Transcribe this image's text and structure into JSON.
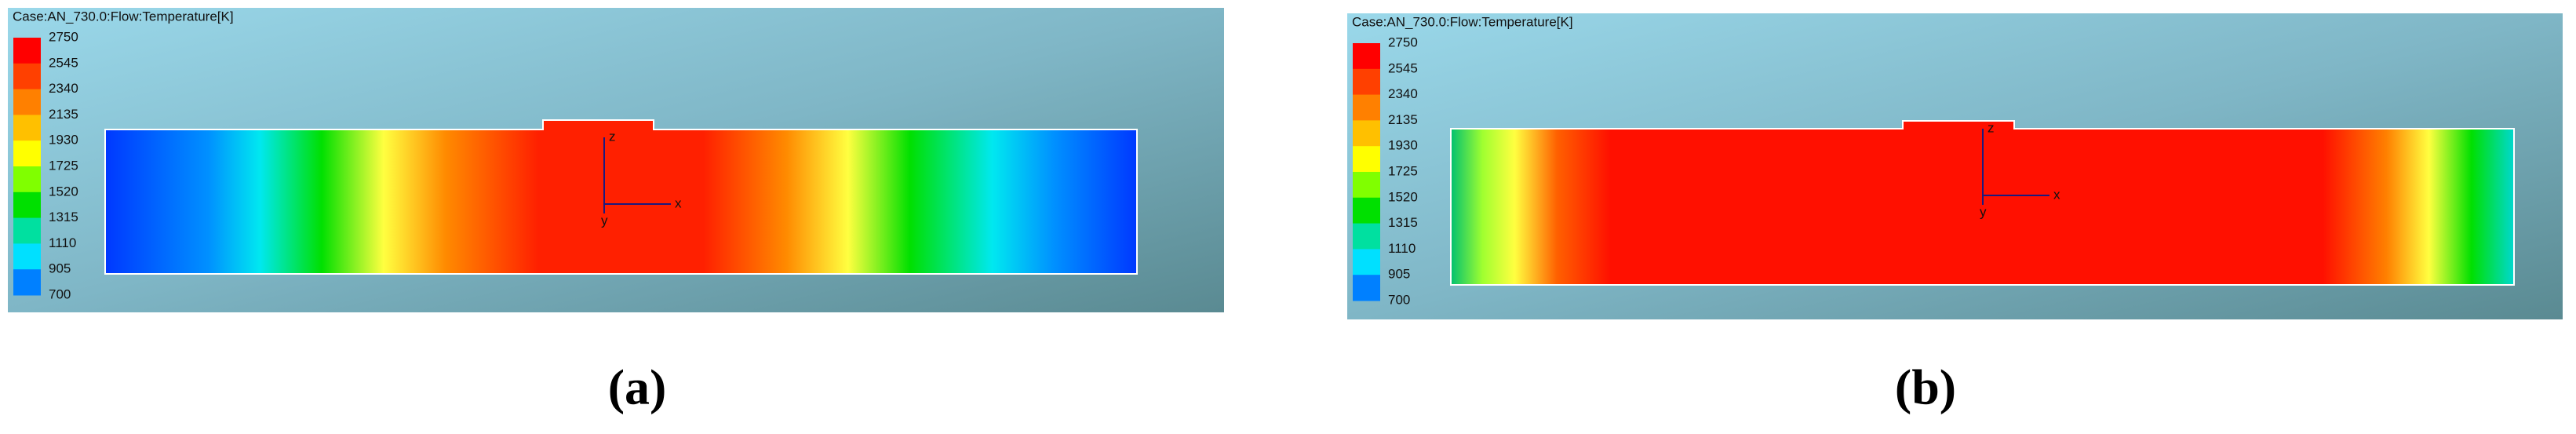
{
  "panels": [
    {
      "label": "(a)",
      "case": "Case:AN_730.0:Flow:Temperature[K]",
      "legend": [
        2750,
        2545,
        2340,
        2135,
        1930,
        1725,
        1520,
        1315,
        1110,
        905,
        700
      ],
      "axes": [
        "z",
        "x",
        "y"
      ]
    },
    {
      "label": "(b)",
      "case": "Case:AN_730.0:Flow:Temperature[K]",
      "legend": [
        2750,
        2545,
        2340,
        2135,
        1930,
        1725,
        1520,
        1315,
        1110,
        905,
        700
      ],
      "axes": [
        "z",
        "x",
        "y"
      ]
    }
  ]
}
